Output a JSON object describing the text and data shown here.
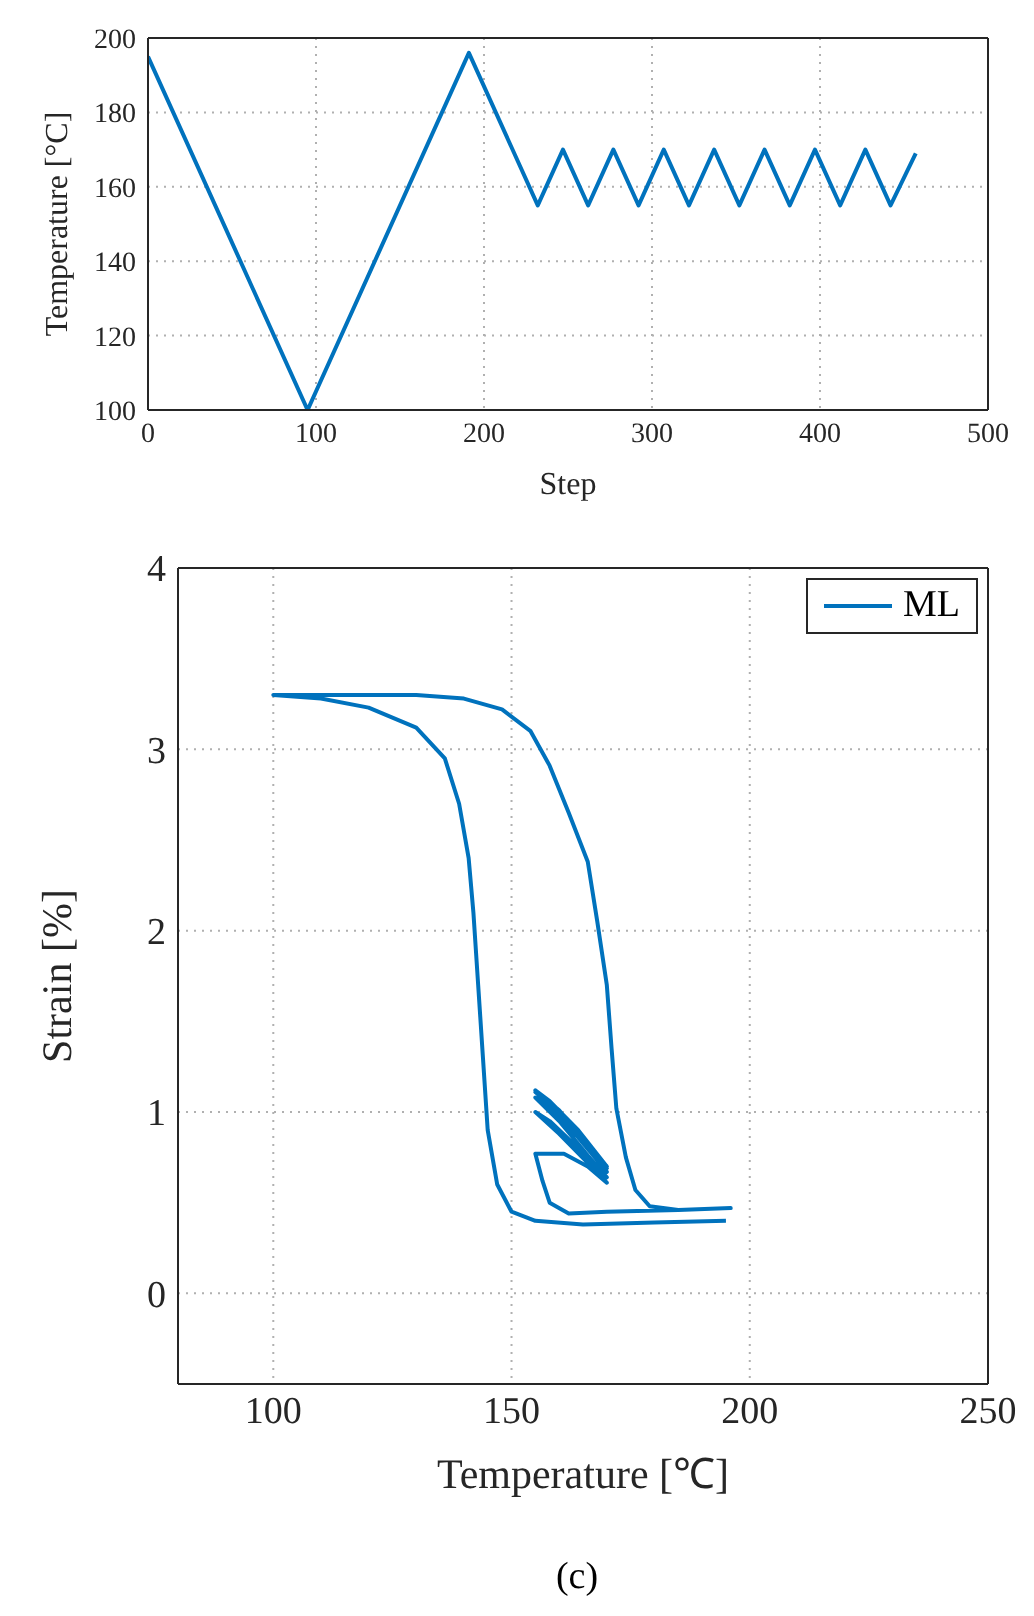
{
  "chart_data": [
    {
      "type": "line",
      "xlabel": "Step",
      "ylabel": "Temperature [°C]",
      "xlim": [
        0,
        500
      ],
      "ylim": [
        100,
        200
      ],
      "xticks": [
        0,
        100,
        200,
        300,
        400,
        500
      ],
      "yticks": [
        100,
        120,
        140,
        160,
        180,
        200
      ],
      "grid": true,
      "legend": false,
      "series": [
        {
          "color": "#0072bd",
          "x": [
            0,
            95,
            191,
            232,
            247,
            262,
            277,
            292,
            307,
            322,
            337,
            352,
            367,
            382,
            397,
            412,
            427,
            442,
            457
          ],
          "values": [
            195,
            100,
            196,
            155,
            170,
            155,
            170,
            155,
            170,
            155,
            170,
            155,
            170,
            155,
            170,
            155,
            170,
            155,
            169
          ]
        }
      ]
    },
    {
      "type": "line",
      "xlabel": "Temperature [℃]",
      "ylabel": "Strain [%]",
      "xlim": [
        80,
        250
      ],
      "ylim": [
        -0.5,
        4
      ],
      "xticks": [
        100,
        150,
        200,
        250
      ],
      "yticks": [
        0,
        1,
        2,
        3,
        4
      ],
      "grid": true,
      "legend": "top right",
      "annotations": [
        "(c)"
      ],
      "series": [
        {
          "name": "ML",
          "color": "#0072bd",
          "x": [
            195,
            180,
            165,
            155,
            150,
            147,
            145,
            144,
            143,
            142,
            141,
            139,
            136,
            130,
            120,
            110,
            100,
            110,
            130,
            140,
            148,
            154,
            158,
            162,
            166,
            168,
            170,
            171,
            172,
            174,
            176,
            179,
            185,
            196,
            185,
            170,
            162,
            158,
            156.5,
            155,
            161,
            166,
            170,
            166,
            160,
            155,
            158,
            164,
            170,
            166,
            160,
            155,
            158,
            164,
            170,
            166,
            160,
            155,
            158,
            164,
            170,
            166,
            160,
            155,
            158,
            164,
            170,
            166,
            160,
            155,
            158,
            164,
            170,
            166,
            160,
            155,
            158,
            164,
            169
          ],
          "values": [
            0.4,
            0.39,
            0.38,
            0.4,
            0.45,
            0.6,
            0.9,
            1.3,
            1.7,
            2.1,
            2.4,
            2.7,
            2.95,
            3.12,
            3.23,
            3.28,
            3.3,
            3.3,
            3.3,
            3.28,
            3.22,
            3.1,
            2.91,
            2.65,
            2.38,
            2.05,
            1.7,
            1.35,
            1.02,
            0.75,
            0.57,
            0.48,
            0.46,
            0.47,
            0.46,
            0.45,
            0.44,
            0.5,
            0.62,
            0.77,
            0.77,
            0.7,
            0.61,
            0.72,
            0.88,
            1.0,
            0.95,
            0.8,
            0.64,
            0.76,
            0.95,
            1.08,
            1.02,
            0.86,
            0.67,
            0.8,
            0.99,
            1.11,
            1.05,
            0.89,
            0.69,
            0.82,
            1.01,
            1.12,
            1.06,
            0.9,
            0.7,
            0.82,
            1.01,
            1.12,
            1.06,
            0.9,
            0.7,
            0.82,
            1.01,
            1.12,
            1.06,
            0.9,
            0.72
          ]
        }
      ]
    }
  ]
}
